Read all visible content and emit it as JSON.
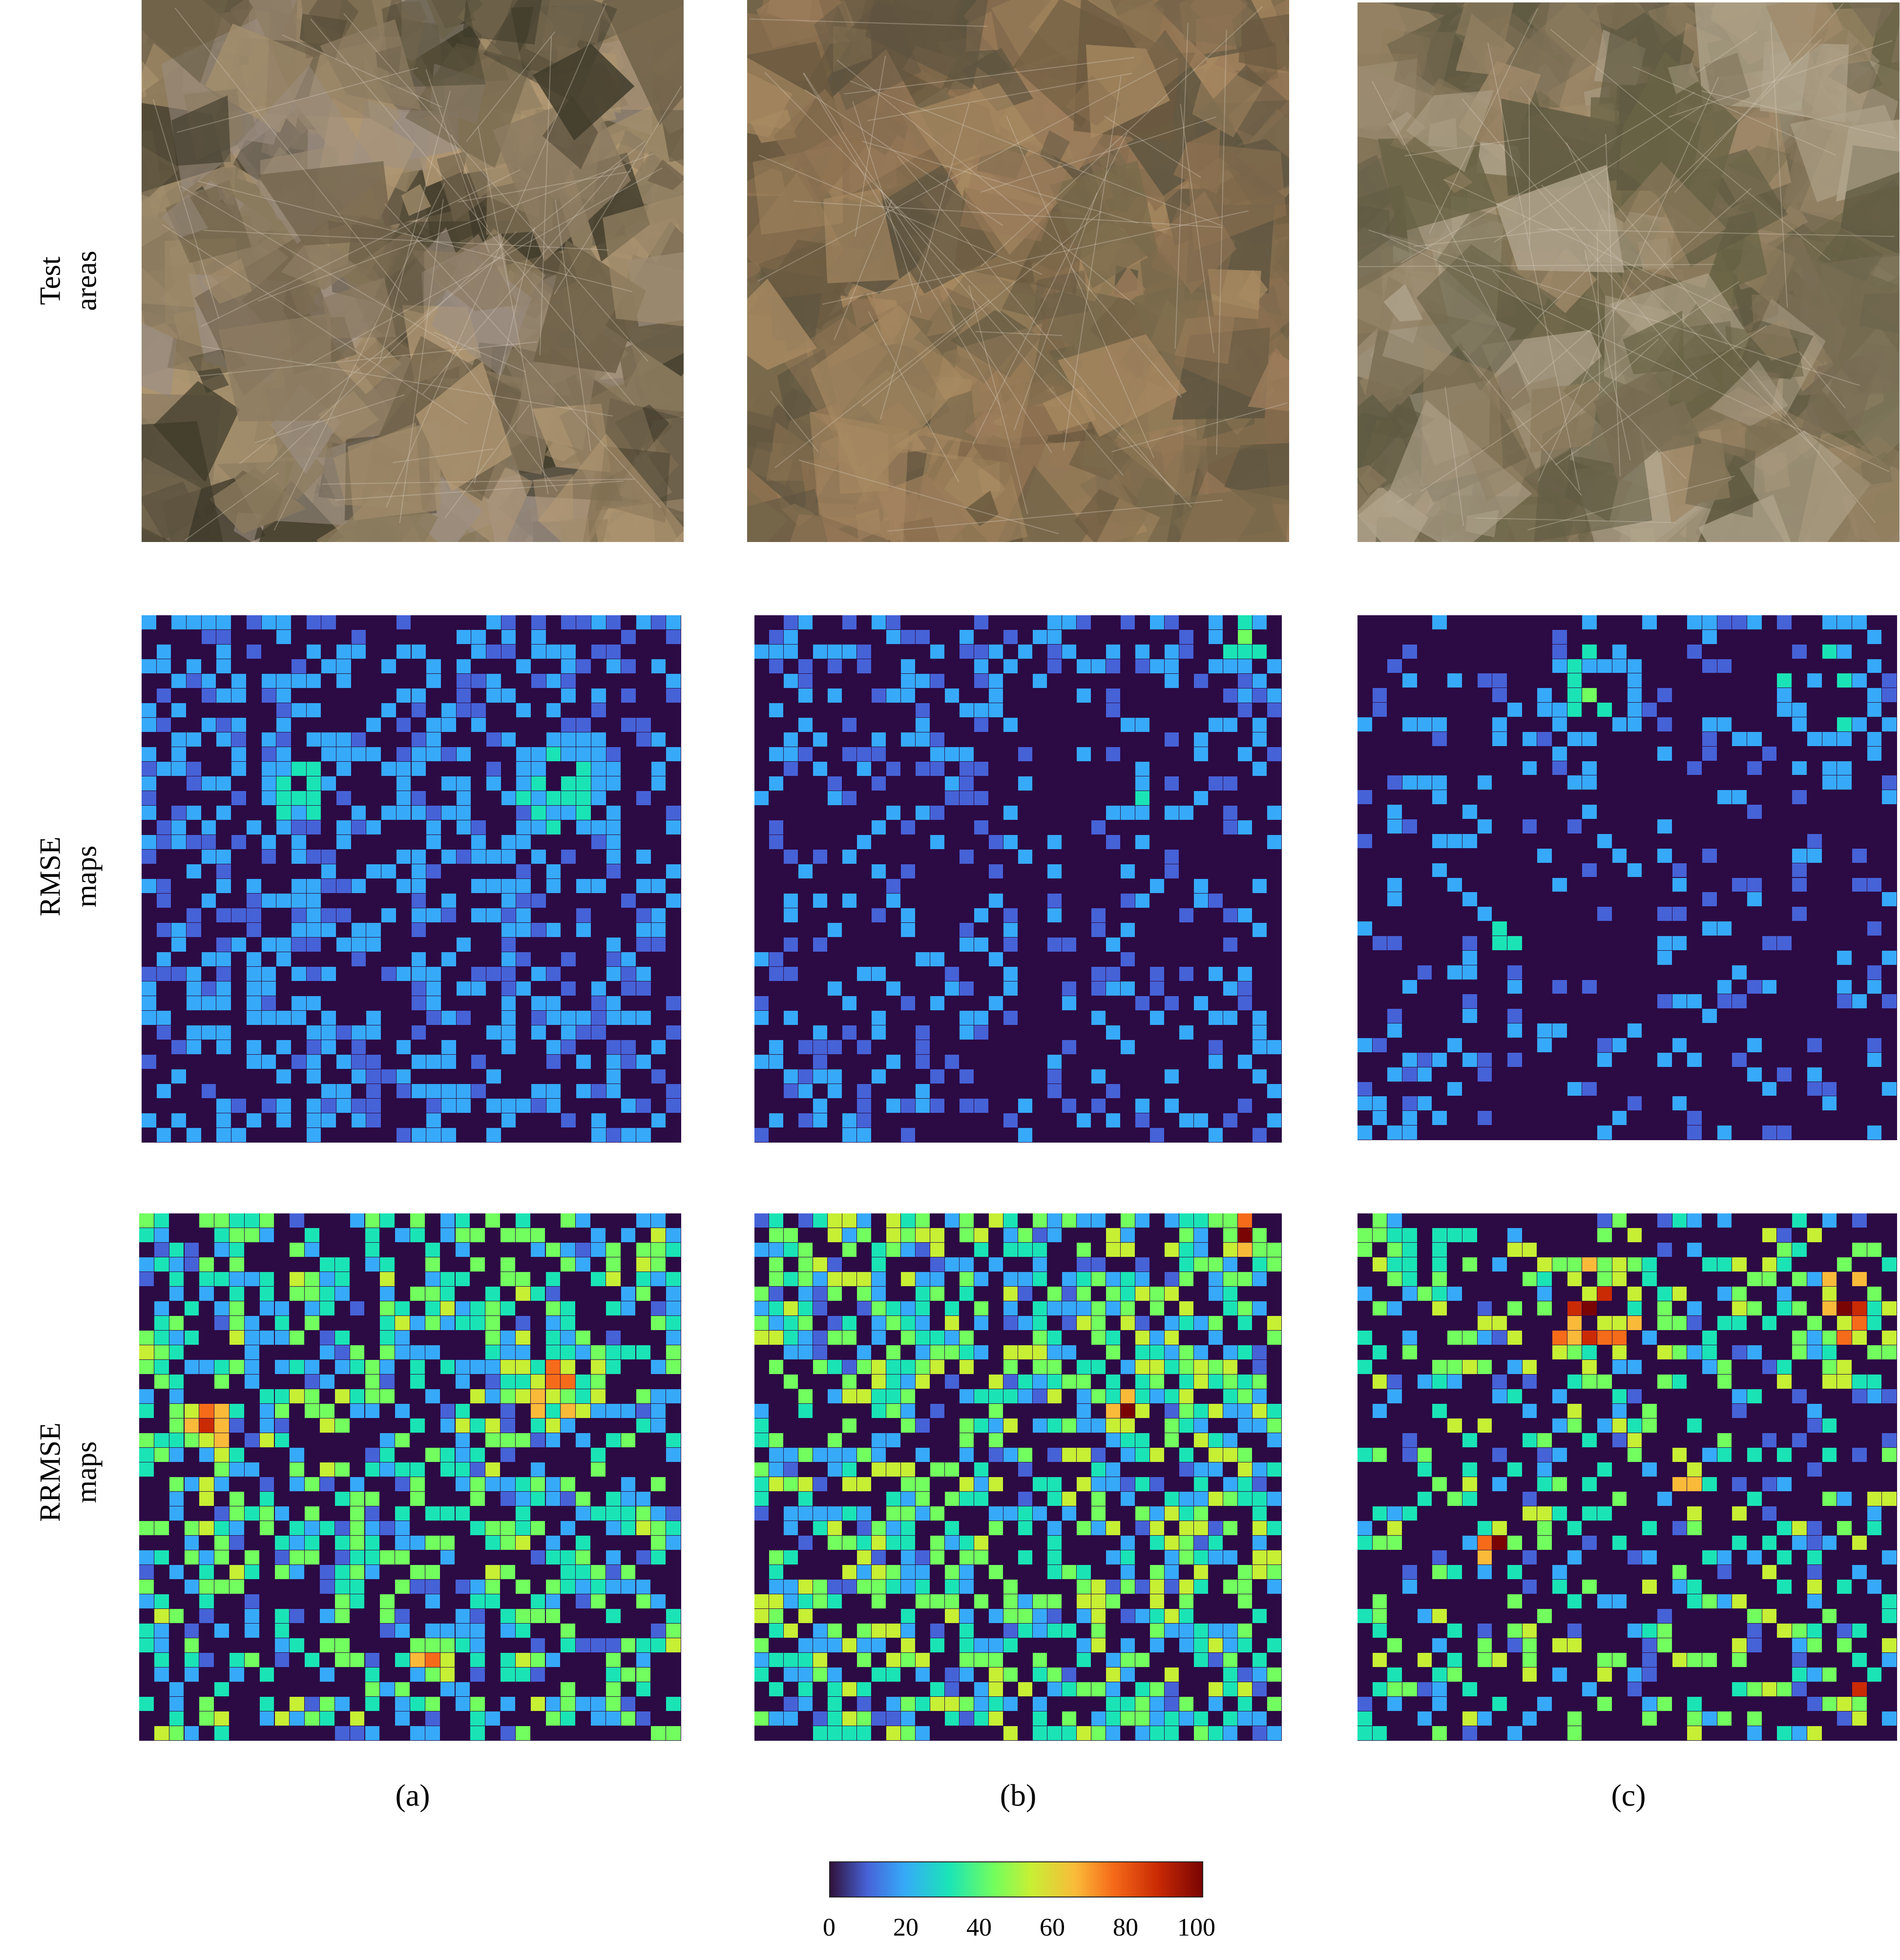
{
  "rows": [
    {
      "label": "Test\nareas"
    },
    {
      "label": "RMSE\nmaps"
    },
    {
      "label": "RRMSE\nmaps"
    }
  ],
  "columns": [
    {
      "caption": "(a)"
    },
    {
      "caption": "(b)"
    },
    {
      "caption": "(c)"
    }
  ],
  "colorbar": {
    "ticks": [
      "0",
      "20",
      "40",
      "60",
      "80",
      "100"
    ],
    "colors": [
      "#30123b",
      "#4662d7",
      "#36aaf9",
      "#1ae4b6",
      "#72fe5e",
      "#c7ef34",
      "#faba39",
      "#f66b19",
      "#ca2a04",
      "#7a0403"
    ]
  },
  "grid": {
    "rows": 36,
    "cols": 36
  },
  "satellite_palette": {
    "a": [
      "#8a7a5e",
      "#6d6048",
      "#a48f6d",
      "#9c8f84",
      "#3f3a2a",
      "#b49a74",
      "#8c7b62"
    ],
    "b": [
      "#8b7050",
      "#6b5a40",
      "#a88a62",
      "#7a6a4c",
      "#9b7b5a",
      "#5d5440"
    ],
    "c": [
      "#7a6e55",
      "#8e7c5e",
      "#6a6446",
      "#a08a6a",
      "#5f5a42",
      "#b0a48c"
    ]
  }
}
